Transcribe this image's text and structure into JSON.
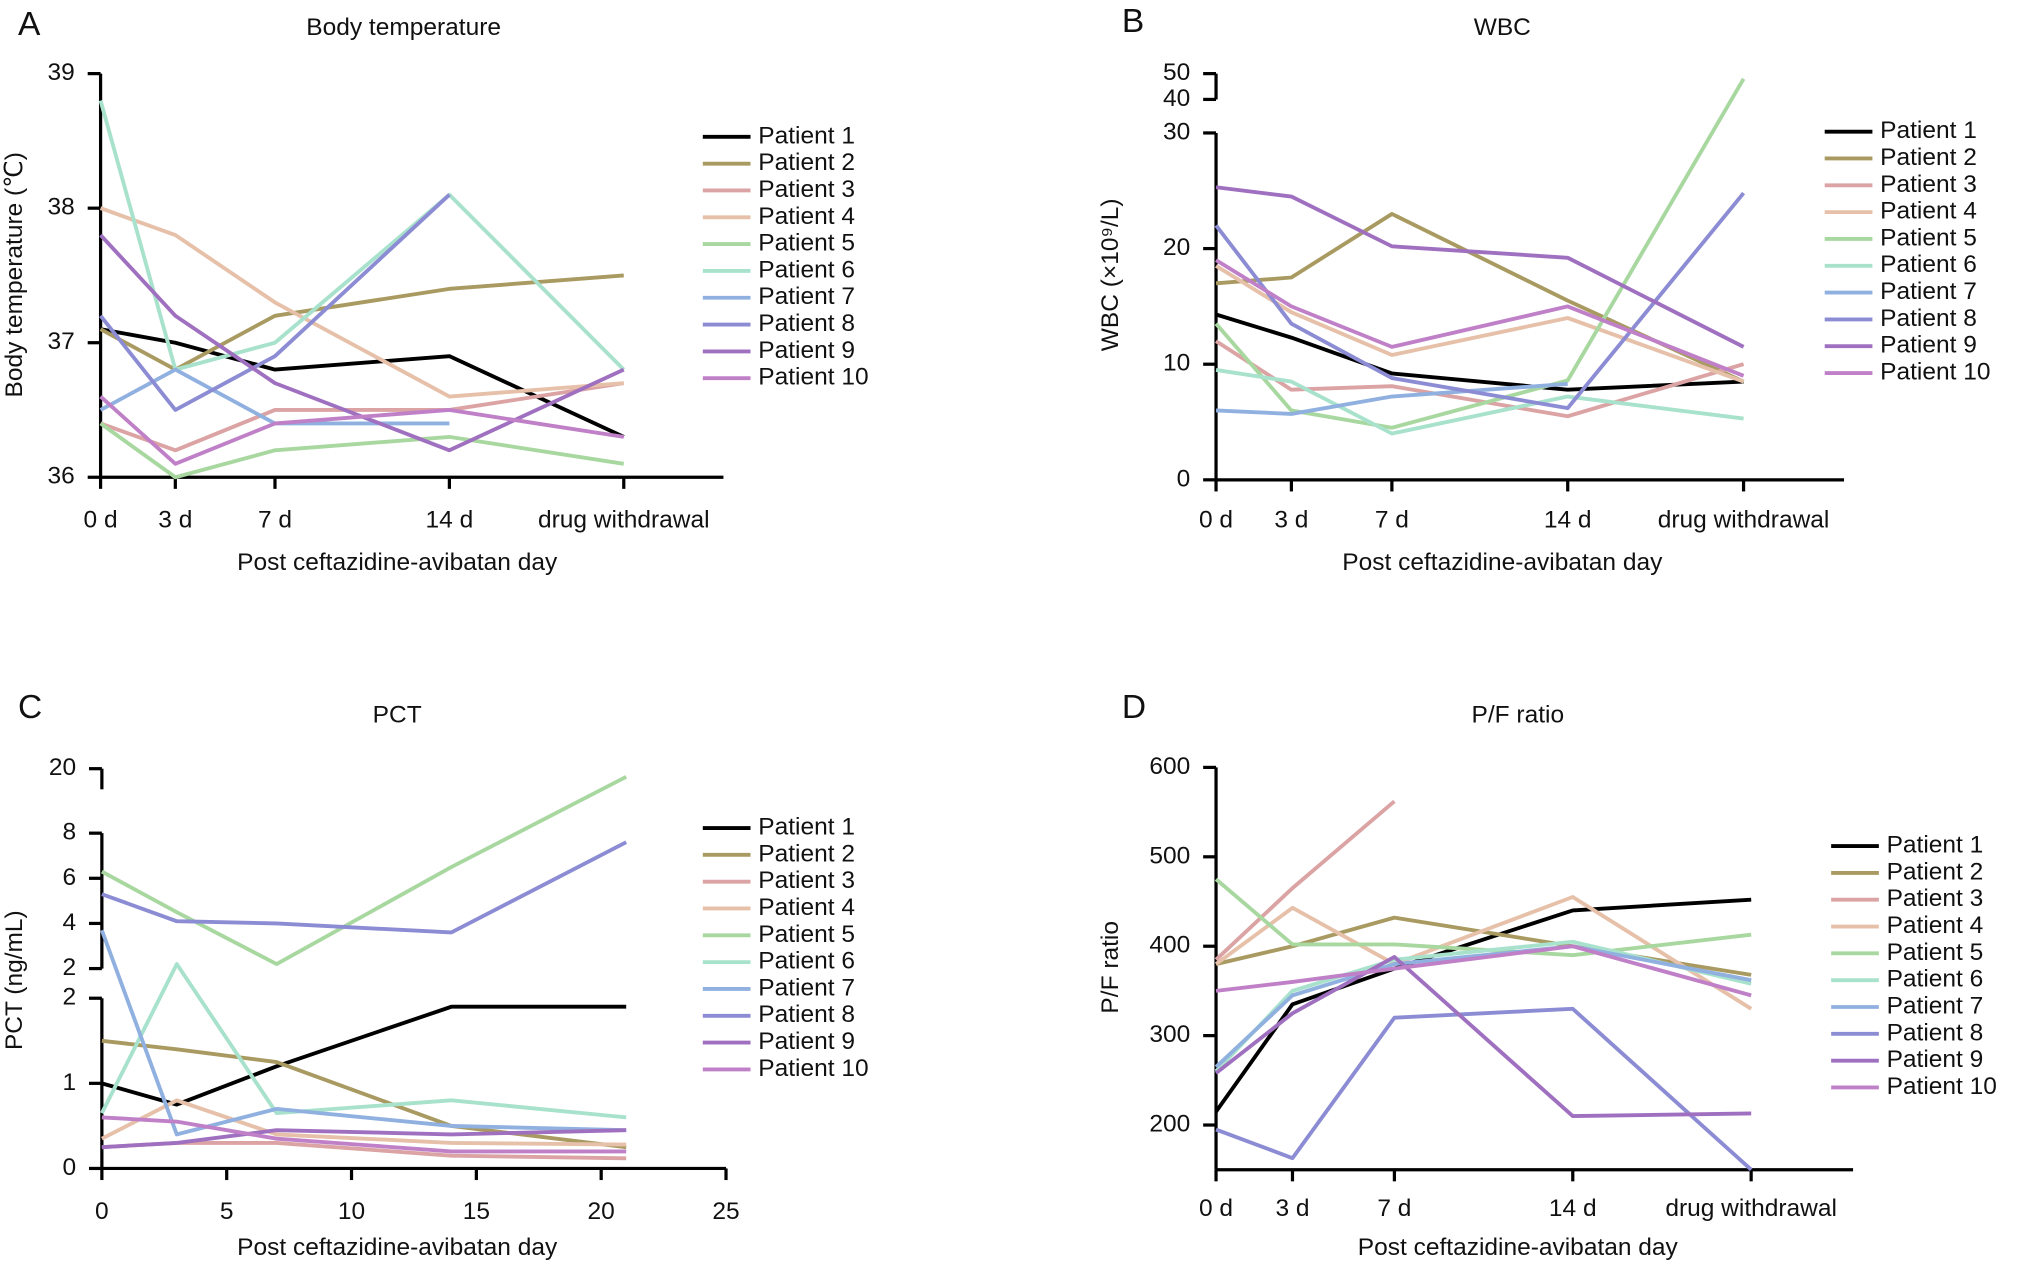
{
  "chart_data": [
    {
      "type": "line",
      "panel": "A",
      "title": "Body temperature",
      "xlabel": "Post ceftazidine-avibatan day",
      "ylabel": "Body temperature (℃)",
      "x": [
        0,
        3,
        7,
        14,
        21
      ],
      "xlim": [
        0,
        25
      ],
      "xticks": [
        {
          "value": 0,
          "label": "0 d"
        },
        {
          "value": 3,
          "label": "3 d"
        },
        {
          "value": 7,
          "label": "7 d"
        },
        {
          "value": 14,
          "label": "14 d"
        },
        {
          "value": 21,
          "label": "drug withdrawal"
        }
      ],
      "ylim": [
        36,
        39
      ],
      "yticks": [
        36,
        37,
        38,
        39
      ],
      "legend": "right",
      "series": [
        {
          "name": "Patient 1",
          "color": "#000000",
          "values": [
            37.1,
            37.0,
            36.8,
            36.9,
            36.3
          ]
        },
        {
          "name": "Patient 2",
          "color": "#a89a60",
          "values": [
            37.1,
            36.8,
            37.2,
            37.4,
            37.5
          ]
        },
        {
          "name": "Patient 3",
          "color": "#dba3a3",
          "values": [
            36.4,
            36.2,
            36.5,
            36.5,
            36.7
          ]
        },
        {
          "name": "Patient 4",
          "color": "#e6c0a8",
          "values": [
            38.0,
            37.8,
            37.3,
            36.6,
            36.7
          ]
        },
        {
          "name": "Patient 5",
          "color": "#a8d8a0",
          "values": [
            36.4,
            36.0,
            36.2,
            36.3,
            36.1
          ]
        },
        {
          "name": "Patient 6",
          "color": "#a8e2cc",
          "values": [
            38.8,
            36.8,
            37.0,
            38.1,
            36.8
          ]
        },
        {
          "name": "Patient 7",
          "color": "#90b0e0",
          "values": [
            36.5,
            36.8,
            36.4,
            36.4,
            null
          ]
        },
        {
          "name": "Patient 8",
          "color": "#8c8cd4",
          "values": [
            37.2,
            36.5,
            36.9,
            38.1,
            null
          ]
        },
        {
          "name": "Patient 9",
          "color": "#a070c0",
          "values": [
            37.8,
            37.2,
            36.7,
            36.2,
            36.8
          ]
        },
        {
          "name": "Patient 10",
          "color": "#c080c8",
          "values": [
            36.6,
            36.1,
            36.4,
            36.5,
            36.3
          ]
        }
      ]
    },
    {
      "type": "line",
      "panel": "B",
      "title": "WBC",
      "xlabel": "Post ceftazidine-avibatan day",
      "ylabel": "WBC (×10⁹/L)",
      "x": [
        0,
        3,
        7,
        14,
        21
      ],
      "xlim": [
        0,
        25
      ],
      "xticks": [
        {
          "value": 0,
          "label": "0 d"
        },
        {
          "value": 3,
          "label": "3 d"
        },
        {
          "value": 7,
          "label": "7 d"
        },
        {
          "value": 14,
          "label": "14 d"
        },
        {
          "value": 21,
          "label": "drug withdrawal"
        }
      ],
      "ylim": [
        0,
        50
      ],
      "ysegments": [
        [
          0,
          30
        ],
        [
          40,
          50
        ]
      ],
      "yticks": [
        [
          0,
          10,
          20,
          30
        ],
        [
          40,
          50
        ]
      ],
      "legend": "right",
      "series": [
        {
          "name": "Patient 1",
          "color": "#000000",
          "values": [
            14.3,
            12.3,
            9.2,
            7.8,
            8.5
          ]
        },
        {
          "name": "Patient 2",
          "color": "#a89a60",
          "values": [
            17,
            17.5,
            23,
            15.5,
            8.5
          ]
        },
        {
          "name": "Patient 3",
          "color": "#dba3a3",
          "values": [
            12,
            7.8,
            8.1,
            5.5,
            10
          ]
        },
        {
          "name": "Patient 4",
          "color": "#e6c0a8",
          "values": [
            18.5,
            14.5,
            10.8,
            14,
            8.5
          ]
        },
        {
          "name": "Patient 5",
          "color": "#a8d8a0",
          "values": [
            13.5,
            6,
            4.5,
            8.6,
            48
          ]
        },
        {
          "name": "Patient 6",
          "color": "#a8e2cc",
          "values": [
            9.5,
            8.5,
            4,
            7.2,
            5.3
          ]
        },
        {
          "name": "Patient 7",
          "color": "#90b0e0",
          "values": [
            6,
            5.7,
            7.2,
            8.3,
            null
          ]
        },
        {
          "name": "Patient 8",
          "color": "#8c8cd4",
          "values": [
            22,
            13.5,
            8.8,
            6.2,
            24.8
          ]
        },
        {
          "name": "Patient 9",
          "color": "#a070c0",
          "values": [
            25.3,
            24.5,
            20.2,
            19.2,
            11.5
          ]
        },
        {
          "name": "Patient 10",
          "color": "#c080c8",
          "values": [
            19,
            15,
            11.5,
            15,
            9
          ]
        }
      ]
    },
    {
      "type": "line",
      "panel": "C",
      "title": "PCT",
      "xlabel": "Post ceftazidine-avibatan day",
      "ylabel": "PCT (ng/mL)",
      "x": [
        0,
        3,
        7,
        14,
        21
      ],
      "xlim": [
        0,
        25
      ],
      "xticks": [
        0,
        5,
        10,
        15,
        20,
        25
      ],
      "ylim": [
        0,
        20
      ],
      "ysegments": [
        [
          0,
          2
        ],
        [
          2,
          8
        ],
        [
          20,
          20
        ]
      ],
      "yticks": [
        [
          0,
          1,
          2
        ],
        [
          2,
          4,
          6,
          8
        ],
        [
          20
        ]
      ],
      "legend": "right",
      "series": [
        {
          "name": "Patient 1",
          "color": "#000000",
          "values": [
            1.0,
            0.75,
            1.2,
            1.9,
            1.9
          ]
        },
        {
          "name": "Patient 2",
          "color": "#a89a60",
          "values": [
            1.5,
            1.4,
            1.25,
            0.5,
            0.25
          ]
        },
        {
          "name": "Patient 3",
          "color": "#dba3a3",
          "values": [
            0.25,
            0.3,
            0.3,
            0.15,
            0.12
          ]
        },
        {
          "name": "Patient 4",
          "color": "#e6c0a8",
          "values": [
            0.35,
            0.8,
            0.4,
            0.3,
            0.28
          ]
        },
        {
          "name": "Patient 5",
          "color": "#a8d8a0",
          "values": [
            6.3,
            4.5,
            2.2,
            6.5,
            18.5
          ]
        },
        {
          "name": "Patient 6",
          "color": "#a8e2cc",
          "values": [
            0.65,
            2.2,
            0.65,
            0.8,
            0.6
          ]
        },
        {
          "name": "Patient 7",
          "color": "#90b0e0",
          "values": [
            3.7,
            0.4,
            0.7,
            0.5,
            0.45
          ]
        },
        {
          "name": "Patient 8",
          "color": "#8c8cd4",
          "values": [
            5.3,
            4.1,
            4.0,
            3.6,
            7.6
          ]
        },
        {
          "name": "Patient 9",
          "color": "#a070c0",
          "values": [
            0.25,
            0.3,
            0.45,
            0.4,
            0.45
          ]
        },
        {
          "name": "Patient 10",
          "color": "#c080c8",
          "values": [
            0.6,
            0.55,
            0.35,
            0.2,
            0.2
          ]
        }
      ]
    },
    {
      "type": "line",
      "panel": "D",
      "title": "P/F ratio",
      "xlabel": "Post ceftazidine-avibatan day",
      "ylabel": "P/F ratio",
      "x": [
        0,
        3,
        7,
        14,
        21
      ],
      "xlim": [
        0,
        25
      ],
      "xticks": [
        {
          "value": 0,
          "label": "0 d"
        },
        {
          "value": 3,
          "label": "3 d"
        },
        {
          "value": 7,
          "label": "7 d"
        },
        {
          "value": 14,
          "label": "14 d"
        },
        {
          "value": 21,
          "label": "drug withdrawal"
        }
      ],
      "ylim": [
        150,
        600
      ],
      "yticks": [
        200,
        300,
        400,
        500,
        600
      ],
      "legend": "right",
      "series": [
        {
          "name": "Patient 1",
          "color": "#000000",
          "values": [
            215,
            335,
            375,
            440,
            452
          ]
        },
        {
          "name": "Patient 2",
          "color": "#a89a60",
          "values": [
            380,
            400,
            432,
            400,
            368
          ]
        },
        {
          "name": "Patient 3",
          "color": "#dba3a3",
          "values": [
            385,
            465,
            562,
            null,
            null
          ]
        },
        {
          "name": "Patient 4",
          "color": "#e6c0a8",
          "values": [
            380,
            443,
            380,
            455,
            330
          ]
        },
        {
          "name": "Patient 5",
          "color": "#a8d8a0",
          "values": [
            475,
            402,
            402,
            390,
            413
          ]
        },
        {
          "name": "Patient 6",
          "color": "#a8e2cc",
          "values": [
            260,
            350,
            385,
            405,
            358
          ]
        },
        {
          "name": "Patient 7",
          "color": "#90b0e0",
          "values": [
            265,
            345,
            380,
            400,
            362
          ]
        },
        {
          "name": "Patient 8",
          "color": "#8c8cd4",
          "values": [
            195,
            163,
            320,
            330,
            150
          ]
        },
        {
          "name": "Patient 9",
          "color": "#a070c0",
          "values": [
            258,
            325,
            388,
            210,
            213
          ]
        },
        {
          "name": "Patient 10",
          "color": "#c080c8",
          "values": [
            350,
            360,
            375,
            400,
            345
          ]
        }
      ]
    }
  ]
}
